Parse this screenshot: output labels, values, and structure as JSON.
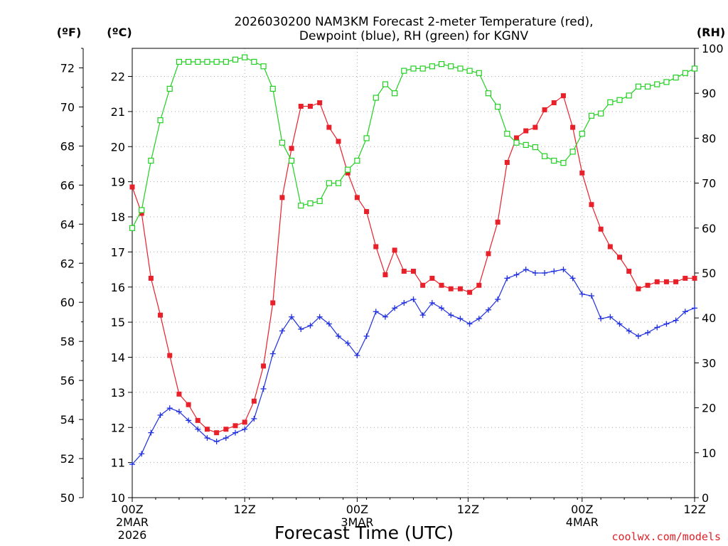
{
  "chart_data": {
    "type": "line",
    "title_line1": "2026030200 NAM3KM Forecast 2-meter Temperature (red),",
    "title_line2": "Dewpoint (blue), RH (green) for KGNV",
    "xlabel": "Forecast Time (UTC)",
    "credit": "coolwx.com/models",
    "unit_f": "(ºF)",
    "unit_c": "(ºC)",
    "unit_rh": "(RH)",
    "x_range_hours": [
      0,
      36
    ],
    "c_range": [
      10,
      22.8
    ],
    "f_range": [
      50,
      73
    ],
    "rh_range": [
      0,
      100
    ],
    "c_ticks": [
      "10",
      "11",
      "12",
      "13",
      "14",
      "15",
      "16",
      "17",
      "18",
      "19",
      "20",
      "21",
      "22"
    ],
    "f_ticks": [
      "50",
      "52",
      "54",
      "56",
      "58",
      "60",
      "62",
      "64",
      "66",
      "68",
      "70",
      "72"
    ],
    "rh_ticks": [
      "0",
      "10",
      "20",
      "30",
      "40",
      "50",
      "60",
      "70",
      "80",
      "90",
      "100"
    ],
    "x_ticks": [
      {
        "hour": 0,
        "label": "00Z",
        "line2": "2MAR",
        "line3": "2026"
      },
      {
        "hour": 7.2,
        "label": "12Z",
        "line2": "",
        "line3": ""
      },
      {
        "hour": 14.4,
        "label": "00Z",
        "line2": "3MAR",
        "line3": ""
      },
      {
        "hour": 21.5,
        "label": "12Z",
        "line2": "",
        "line3": ""
      },
      {
        "hour": 28.8,
        "label": "00Z",
        "line2": "4MAR",
        "line3": ""
      },
      {
        "hour": 36,
        "label": "12Z",
        "line2": "",
        "line3": ""
      }
    ],
    "series": [
      {
        "name": "Temperature",
        "unit": "C",
        "color": "#e8202a",
        "marker": "square-filled",
        "values": [
          18.85,
          18.1,
          16.25,
          15.2,
          14.05,
          12.95,
          12.65,
          12.2,
          11.95,
          11.85,
          11.95,
          12.05,
          12.15,
          12.75,
          13.75,
          15.55,
          18.55,
          19.95,
          21.15,
          21.15,
          21.25,
          20.55,
          20.15,
          19.25,
          18.55,
          18.15,
          17.15,
          16.35,
          17.05,
          16.45,
          16.45,
          16.05,
          16.25,
          16.05,
          15.95,
          15.95,
          15.85,
          16.05,
          16.95,
          17.85,
          19.55,
          20.25,
          20.45,
          20.55,
          21.05,
          21.25,
          21.45,
          20.55,
          19.25,
          18.35,
          17.65,
          17.15,
          16.85,
          16.45,
          15.95,
          16.05,
          16.15,
          16.15,
          16.15,
          16.25,
          16.25
        ]
      },
      {
        "name": "Dewpoint",
        "unit": "C",
        "color": "#2030e0",
        "marker": "plus",
        "values": [
          10.95,
          11.25,
          11.85,
          12.35,
          12.55,
          12.45,
          12.2,
          11.95,
          11.7,
          11.6,
          11.7,
          11.85,
          11.95,
          12.25,
          13.1,
          14.1,
          14.75,
          15.15,
          14.8,
          14.9,
          15.15,
          14.95,
          14.6,
          14.4,
          14.05,
          14.6,
          15.3,
          15.15,
          15.4,
          15.55,
          15.65,
          15.2,
          15.55,
          15.4,
          15.2,
          15.1,
          14.95,
          15.1,
          15.35,
          15.65,
          16.25,
          16.35,
          16.5,
          16.4,
          16.4,
          16.45,
          16.5,
          16.25,
          15.8,
          15.75,
          15.1,
          15.15,
          14.95,
          14.75,
          14.6,
          14.7,
          14.85,
          14.95,
          15.05,
          15.3,
          15.4
        ]
      },
      {
        "name": "RH",
        "unit": "%",
        "color": "#20d020",
        "marker": "square-open",
        "values": [
          60,
          64,
          75,
          84,
          91,
          97,
          97,
          97,
          97,
          97,
          97,
          97.5,
          98,
          97,
          96,
          91,
          79,
          75,
          65,
          65.5,
          66,
          70,
          70,
          73,
          75,
          80,
          89,
          92,
          90,
          95,
          95.5,
          95.5,
          96,
          96.5,
          96,
          95.5,
          95,
          94.5,
          90,
          87,
          81,
          79,
          78.5,
          78,
          76,
          75,
          74.5,
          77,
          81,
          85,
          85.5,
          88,
          88.5,
          89.5,
          91.5,
          91.5,
          92,
          92.5,
          93.5,
          94.5,
          95.5
        ]
      }
    ]
  }
}
